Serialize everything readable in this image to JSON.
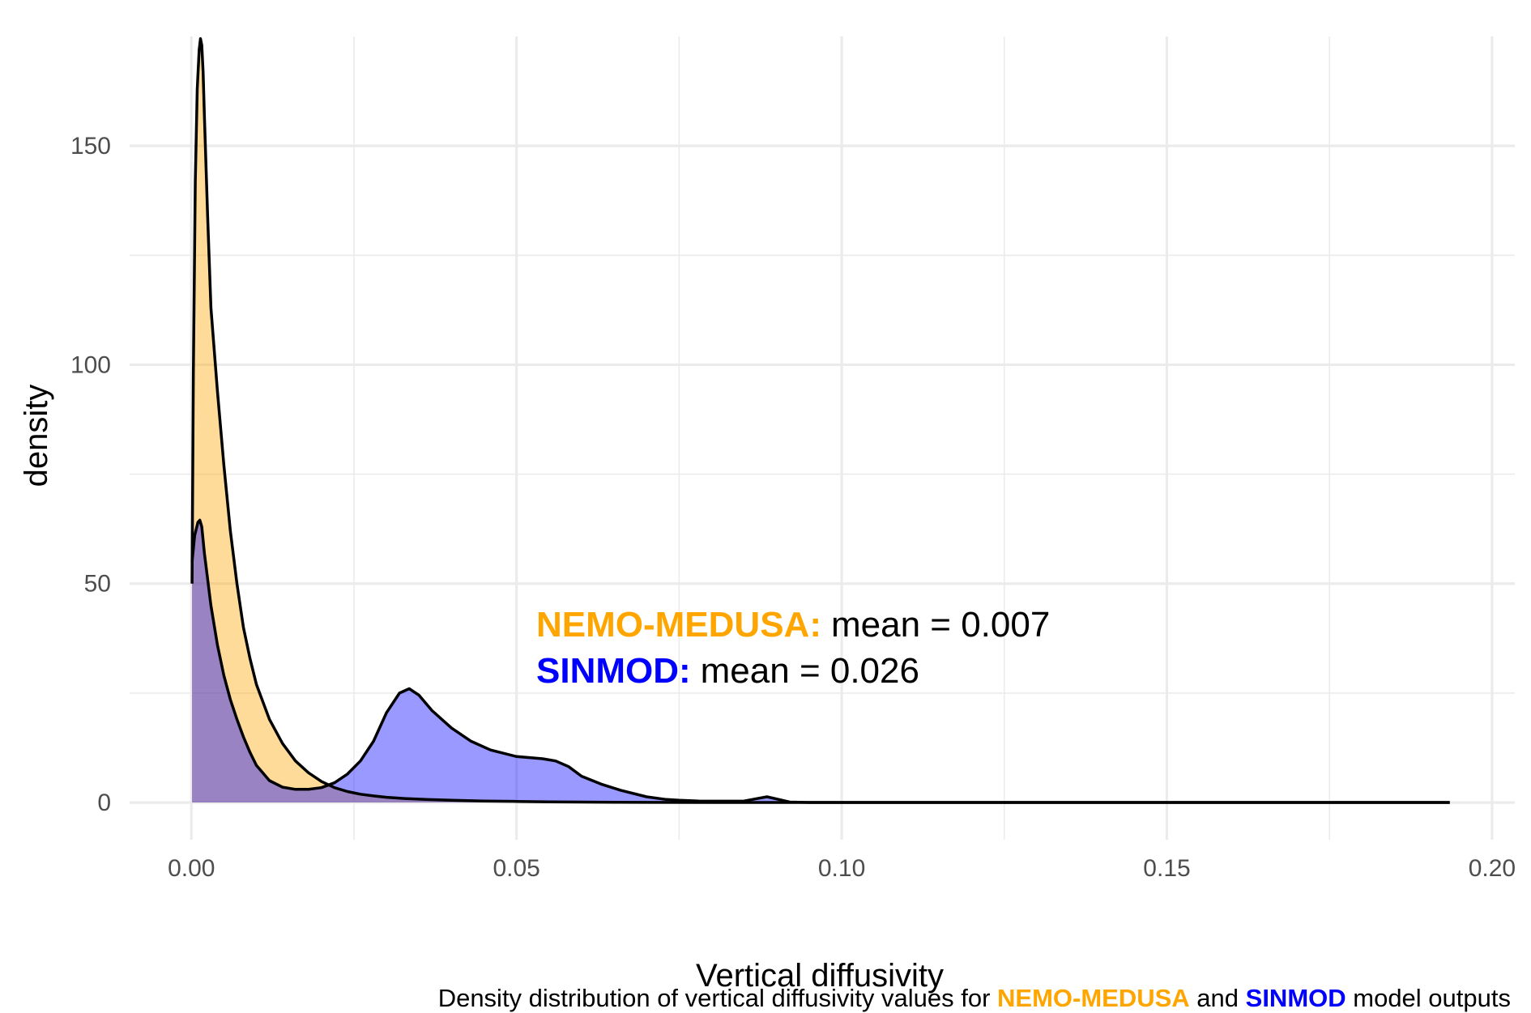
{
  "chart_data": {
    "type": "area",
    "xlabel": "Vertical diffusivity",
    "ylabel": "density",
    "xlim": [
      -0.0095,
      0.2035
    ],
    "ylim": [
      -8.5,
      175
    ],
    "x_ticks": [
      0.0,
      0.05,
      0.1,
      0.15,
      0.2
    ],
    "x_tick_labels": [
      "0.00",
      "0.05",
      "0.10",
      "0.15",
      "0.20"
    ],
    "x_minor_ticks": [
      0.025,
      0.075,
      0.125,
      0.175
    ],
    "y_ticks": [
      0,
      50,
      100,
      150
    ],
    "y_tick_labels": [
      "0",
      "50",
      "100",
      "150"
    ],
    "y_minor_ticks": [
      25,
      75,
      125
    ],
    "grid": true,
    "legend": "none",
    "colors": {
      "NEMO-MEDUSA": "#FFA500",
      "SINMOD": "#0000FF",
      "overlap": "#996161",
      "outline": "#000000"
    },
    "series": [
      {
        "name": "NEMO-MEDUSA",
        "fill": "#FFA500",
        "x": [
          0.0001,
          0.0003,
          0.0006,
          0.0009,
          0.0012,
          0.0014,
          0.0016,
          0.0018,
          0.002,
          0.0025,
          0.003,
          0.004,
          0.005,
          0.006,
          0.007,
          0.008,
          0.009,
          0.01,
          0.012,
          0.014,
          0.016,
          0.018,
          0.02,
          0.022,
          0.024,
          0.026,
          0.028,
          0.03,
          0.033,
          0.036,
          0.04,
          0.045,
          0.05,
          0.055,
          0.06,
          0.065,
          0.07,
          0.08,
          0.09,
          0.1,
          0.12,
          0.15,
          0.18,
          0.1935
        ],
        "y": [
          50,
          98,
          142,
          163,
          172,
          174.5,
          173,
          167,
          157,
          134,
          113,
          94,
          77,
          62,
          50,
          40,
          33,
          27,
          19,
          13.5,
          9.5,
          6.8,
          4.8,
          3.4,
          2.5,
          1.9,
          1.5,
          1.2,
          0.9,
          0.7,
          0.5,
          0.35,
          0.25,
          0.15,
          0.1,
          0.05,
          0.03,
          0.01,
          0,
          0,
          0,
          0,
          0,
          0
        ]
      },
      {
        "name": "SINMOD",
        "fill": "#0000FF",
        "x": [
          0.0001,
          0.0005,
          0.001,
          0.0013,
          0.0016,
          0.002,
          0.003,
          0.004,
          0.005,
          0.006,
          0.007,
          0.008,
          0.009,
          0.01,
          0.012,
          0.014,
          0.016,
          0.018,
          0.02,
          0.022,
          0.024,
          0.026,
          0.028,
          0.03,
          0.032,
          0.0335,
          0.035,
          0.037,
          0.04,
          0.043,
          0.046,
          0.05,
          0.054,
          0.056,
          0.058,
          0.06,
          0.063,
          0.066,
          0.07,
          0.073,
          0.075,
          0.078,
          0.082,
          0.085,
          0.087,
          0.0885,
          0.09,
          0.092,
          0.095,
          0.1,
          0.12,
          0.15,
          0.18,
          0.1935
        ],
        "y": [
          55,
          61,
          64,
          64.5,
          63,
          57,
          45,
          36,
          29,
          23.5,
          19,
          15,
          11.5,
          8.5,
          5,
          3.5,
          3,
          3,
          3.4,
          4.5,
          6.5,
          9.5,
          14,
          20.5,
          25,
          26,
          24.5,
          21,
          17,
          14,
          12,
          10.5,
          10,
          9.5,
          8.2,
          6,
          4.2,
          2.8,
          1.3,
          0.7,
          0.5,
          0.35,
          0.3,
          0.35,
          0.9,
          1.3,
          0.8,
          0.1,
          0,
          0,
          0,
          0,
          0,
          0
        ]
      }
    ],
    "annotations": [
      {
        "label": "NEMO-MEDUSA:",
        "text": "mean = 0.007",
        "color": "#FFA500"
      },
      {
        "label": "SINMOD:",
        "text": "mean = 0.026",
        "color": "#0000FF"
      }
    ],
    "caption": {
      "prefix": "Density distribution of vertical diffusivity values for ",
      "name1": "NEMO-MEDUSA",
      "middle": " and ",
      "name2": "SINMOD",
      "suffix": " model outputs"
    }
  }
}
